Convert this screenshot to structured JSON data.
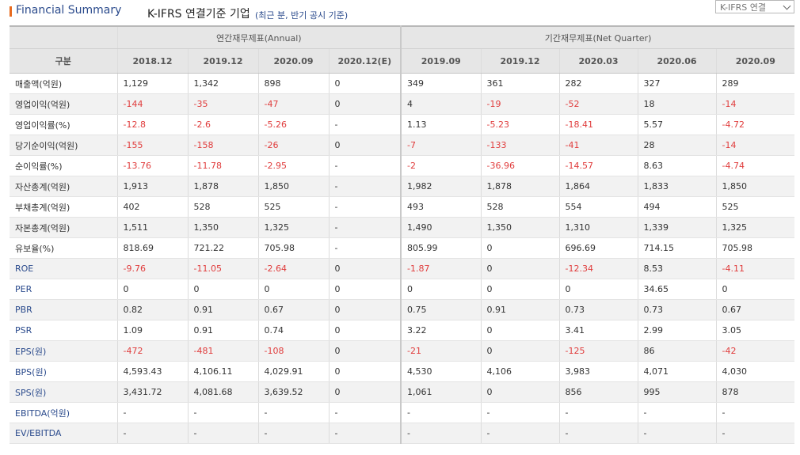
{
  "header": {
    "title": "Financial Summary",
    "subtitle": "K-IFRS 연결기준 기업",
    "note": "(최근 분, 반기 공시 기준)",
    "select_value": "K-IFRS 연결"
  },
  "table": {
    "group_annual": "연간재무제표(Annual)",
    "group_quarter": "기간재무제표(Net Quarter)",
    "row_header": "구분",
    "periods": [
      "2018.12",
      "2019.12",
      "2020.09",
      "2020.12(E)",
      "2019.09",
      "2019.12",
      "2020.03",
      "2020.06",
      "2020.09"
    ],
    "rows": [
      {
        "label": "매출액(억원)",
        "values": [
          "1,129",
          "1,342",
          "898",
          "0",
          "349",
          "361",
          "282",
          "327",
          "289"
        ]
      },
      {
        "label": "영업이익(억원)",
        "values": [
          "-144",
          "-35",
          "-47",
          "0",
          "4",
          "-19",
          "-52",
          "18",
          "-14"
        ]
      },
      {
        "label": "영업이익률(%)",
        "values": [
          "-12.8",
          "-2.6",
          "-5.26",
          "-",
          "1.13",
          "-5.23",
          "-18.41",
          "5.57",
          "-4.72"
        ]
      },
      {
        "label": "당기순이익(억원)",
        "values": [
          "-155",
          "-158",
          "-26",
          "0",
          "-7",
          "-133",
          "-41",
          "28",
          "-14"
        ]
      },
      {
        "label": "순이익률(%)",
        "values": [
          "-13.76",
          "-11.78",
          "-2.95",
          "-",
          "-2",
          "-36.96",
          "-14.57",
          "8.63",
          "-4.74"
        ]
      },
      {
        "label": "자산총계(억원)",
        "values": [
          "1,913",
          "1,878",
          "1,850",
          "-",
          "1,982",
          "1,878",
          "1,864",
          "1,833",
          "1,850"
        ]
      },
      {
        "label": "부채총계(억원)",
        "values": [
          "402",
          "528",
          "525",
          "-",
          "493",
          "528",
          "554",
          "494",
          "525"
        ]
      },
      {
        "label": "자본총계(억원)",
        "values": [
          "1,511",
          "1,350",
          "1,325",
          "-",
          "1,490",
          "1,350",
          "1,310",
          "1,339",
          "1,325"
        ]
      },
      {
        "label": "유보율(%)",
        "values": [
          "818.69",
          "721.22",
          "705.98",
          "-",
          "805.99",
          "0",
          "696.69",
          "714.15",
          "705.98"
        ]
      },
      {
        "label": "ROE",
        "values": [
          "-9.76",
          "-11.05",
          "-2.64",
          "0",
          "-1.87",
          "0",
          "-12.34",
          "8.53",
          "-4.11"
        ]
      },
      {
        "label": "PER",
        "values": [
          "0",
          "0",
          "0",
          "0",
          "0",
          "0",
          "0",
          "34.65",
          "0"
        ]
      },
      {
        "label": "PBR",
        "values": [
          "0.82",
          "0.91",
          "0.67",
          "0",
          "0.75",
          "0.91",
          "0.73",
          "0.73",
          "0.67"
        ]
      },
      {
        "label": "PSR",
        "values": [
          "1.09",
          "0.91",
          "0.74",
          "0",
          "3.22",
          "0",
          "3.41",
          "2.99",
          "3.05"
        ]
      },
      {
        "label": "EPS(원)",
        "values": [
          "-472",
          "-481",
          "-108",
          "0",
          "-21",
          "0",
          "-125",
          "86",
          "-42"
        ]
      },
      {
        "label": "BPS(원)",
        "values": [
          "4,593.43",
          "4,106.11",
          "4,029.91",
          "0",
          "4,530",
          "4,106",
          "3,983",
          "4,071",
          "4,030"
        ]
      },
      {
        "label": "SPS(원)",
        "values": [
          "3,431.72",
          "4,081.68",
          "3,639.52",
          "0",
          "1,061",
          "0",
          "856",
          "995",
          "878"
        ]
      },
      {
        "label": "EBITDA(억원)",
        "values": [
          "-",
          "-",
          "-",
          "-",
          "-",
          "-",
          "-",
          "-",
          "-"
        ]
      },
      {
        "label": "EV/EBITDA",
        "values": [
          "-",
          "-",
          "-",
          "-",
          "-",
          "-",
          "-",
          "-",
          "-"
        ]
      }
    ],
    "blue_labels": [
      "ROE",
      "PER",
      "PBR",
      "PSR",
      "EPS(원)",
      "BPS(원)",
      "SPS(원)",
      "EBITDA(억원)",
      "EV/EBITDA"
    ],
    "colors": {
      "negative": "#e03c3c",
      "label_blue": "#2a4a8c",
      "accent": "#e86b1f"
    }
  }
}
